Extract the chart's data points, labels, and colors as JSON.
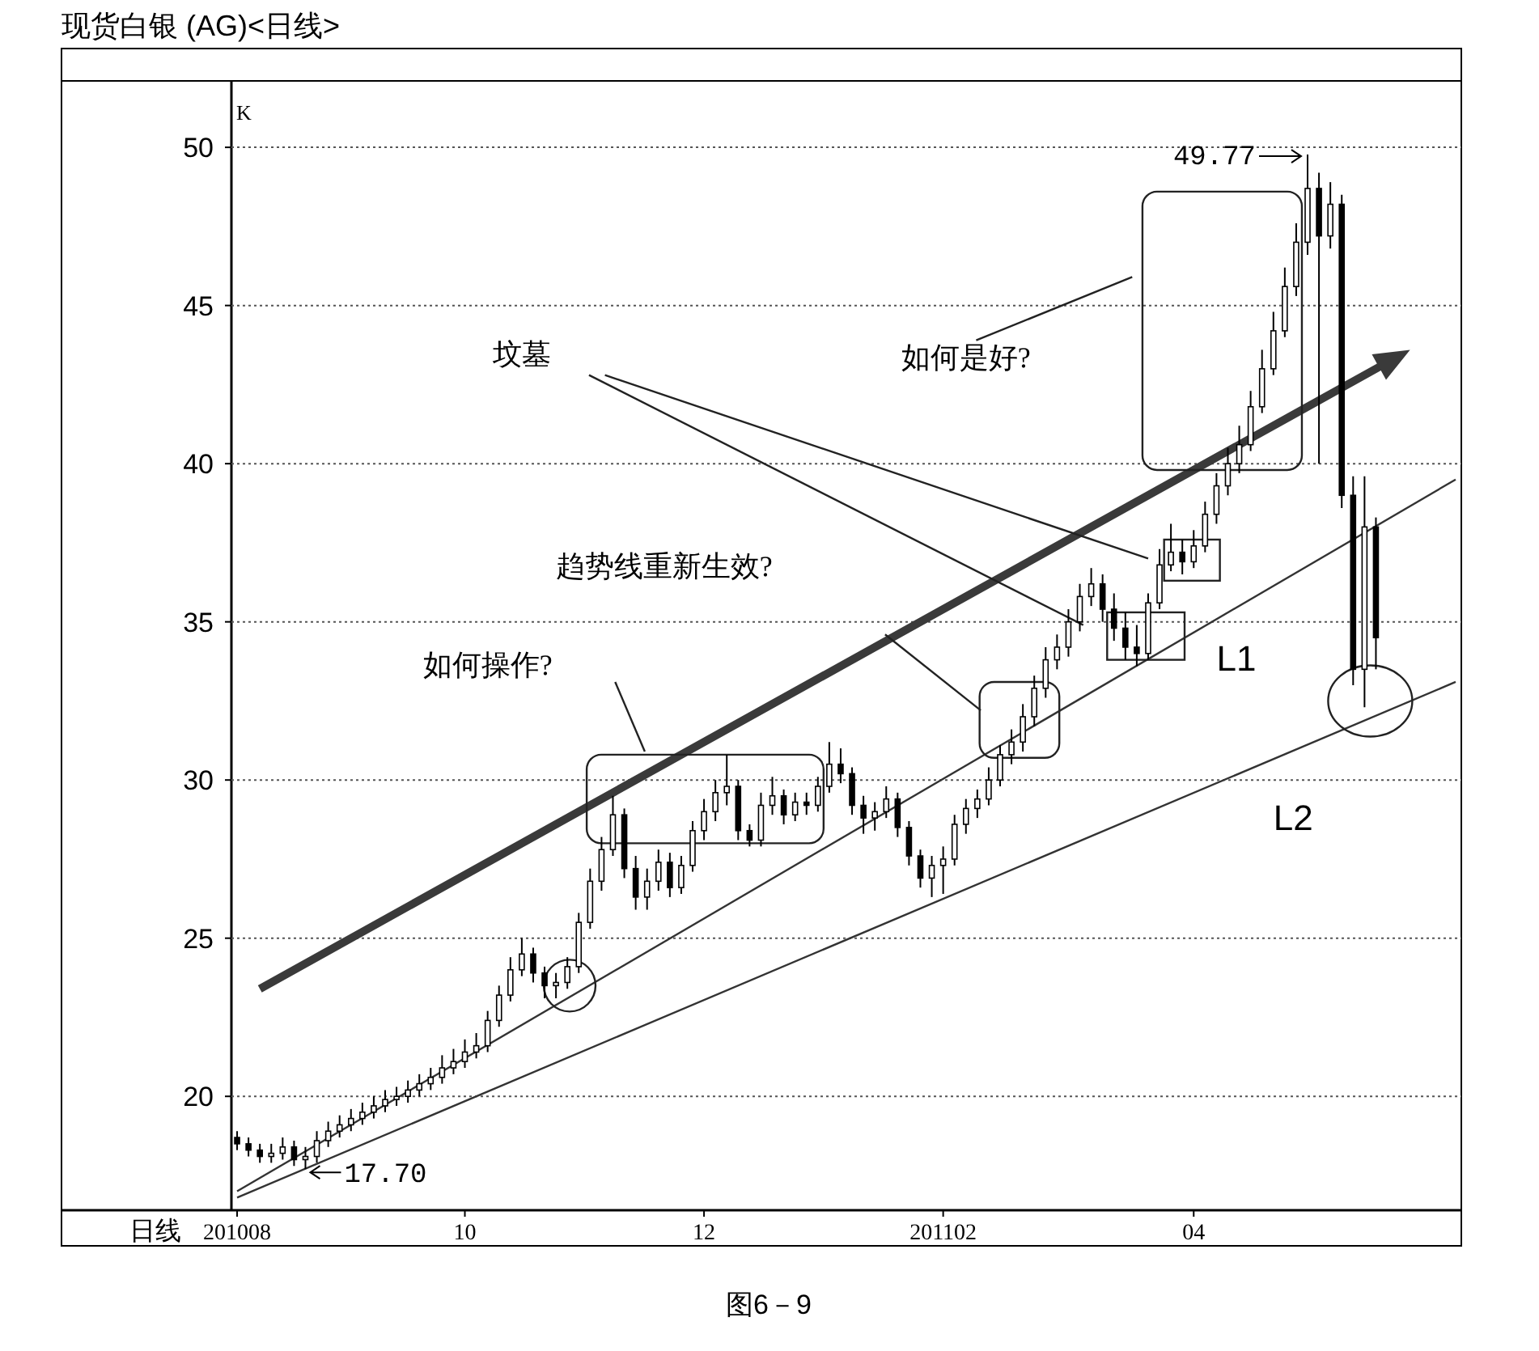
{
  "chart_data": {
    "type": "candlestick",
    "title": "现货白银 (AG)<日线>",
    "ylabel": "K",
    "xlabel": "日线",
    "categories": [
      "201008",
      null,
      null,
      null,
      null,
      null,
      null,
      null,
      null,
      null,
      null,
      null,
      null,
      null,
      null,
      null,
      null,
      null,
      null,
      null,
      "10",
      null,
      null,
      null,
      null,
      null,
      null,
      null,
      null,
      null,
      null,
      null,
      null,
      null,
      null,
      null,
      null,
      null,
      null,
      null,
      null,
      "12",
      null,
      null,
      null,
      null,
      null,
      null,
      null,
      null,
      null,
      null,
      null,
      null,
      null,
      null,
      null,
      null,
      null,
      null,
      null,
      null,
      "201102",
      null,
      null,
      null,
      null,
      null,
      null,
      null,
      null,
      null,
      null,
      null,
      null,
      null,
      null,
      null,
      null,
      null,
      null,
      null,
      null,
      null,
      "04",
      null,
      null,
      null,
      null,
      null,
      null,
      null,
      null,
      null,
      null,
      null,
      null,
      null,
      null,
      null,
      null,
      null,
      null,
      null,
      null,
      null,
      null,
      null
    ],
    "ohlc": [
      [
        18.7,
        18.9,
        18.3,
        18.5
      ],
      [
        18.5,
        18.7,
        18.1,
        18.3
      ],
      [
        18.3,
        18.5,
        17.9,
        18.1
      ],
      [
        18.1,
        18.5,
        17.9,
        18.2
      ],
      [
        18.2,
        18.7,
        18.0,
        18.4
      ],
      [
        18.4,
        18.6,
        17.8,
        18.0
      ],
      [
        18.0,
        18.4,
        17.7,
        18.1
      ],
      [
        18.1,
        18.9,
        17.9,
        18.6
      ],
      [
        18.6,
        19.2,
        18.4,
        18.9
      ],
      [
        18.9,
        19.4,
        18.7,
        19.1
      ],
      [
        19.1,
        19.6,
        18.9,
        19.3
      ],
      [
        19.3,
        19.8,
        19.1,
        19.5
      ],
      [
        19.5,
        20.0,
        19.3,
        19.7
      ],
      [
        19.7,
        20.2,
        19.5,
        19.9
      ],
      [
        19.9,
        20.3,
        19.7,
        20.0
      ],
      [
        20.0,
        20.5,
        19.8,
        20.2
      ],
      [
        20.2,
        20.7,
        20.0,
        20.4
      ],
      [
        20.4,
        20.9,
        20.2,
        20.6
      ],
      [
        20.6,
        21.3,
        20.4,
        20.9
      ],
      [
        20.9,
        21.5,
        20.7,
        21.1
      ],
      [
        21.1,
        21.8,
        20.9,
        21.4
      ],
      [
        21.4,
        22.0,
        21.2,
        21.6
      ],
      [
        21.6,
        22.7,
        21.4,
        22.4
      ],
      [
        22.4,
        23.5,
        22.2,
        23.2
      ],
      [
        23.2,
        24.4,
        23.0,
        24.0
      ],
      [
        24.0,
        25.0,
        23.8,
        24.5
      ],
      [
        24.5,
        24.7,
        23.6,
        23.9
      ],
      [
        23.9,
        24.1,
        23.1,
        23.5
      ],
      [
        23.5,
        23.9,
        23.1,
        23.6
      ],
      [
        23.6,
        24.4,
        23.4,
        24.1
      ],
      [
        24.1,
        25.8,
        23.9,
        25.5
      ],
      [
        25.5,
        27.2,
        25.3,
        26.8
      ],
      [
        26.8,
        28.2,
        26.5,
        27.8
      ],
      [
        27.8,
        29.5,
        27.6,
        28.9
      ],
      [
        28.9,
        29.1,
        26.9,
        27.2
      ],
      [
        27.2,
        27.6,
        25.9,
        26.3
      ],
      [
        26.3,
        27.2,
        25.9,
        26.8
      ],
      [
        26.8,
        27.8,
        26.5,
        27.4
      ],
      [
        27.4,
        27.7,
        26.3,
        26.6
      ],
      [
        26.6,
        27.6,
        26.4,
        27.3
      ],
      [
        27.3,
        28.7,
        27.1,
        28.4
      ],
      [
        28.4,
        29.4,
        28.1,
        29.0
      ],
      [
        29.0,
        30.0,
        28.7,
        29.6
      ],
      [
        29.6,
        30.8,
        29.2,
        29.8
      ],
      [
        29.8,
        30.0,
        28.1,
        28.4
      ],
      [
        28.4,
        28.6,
        27.9,
        28.1
      ],
      [
        28.1,
        29.6,
        27.9,
        29.2
      ],
      [
        29.2,
        30.1,
        28.9,
        29.5
      ],
      [
        29.5,
        29.7,
        28.6,
        28.9
      ],
      [
        28.9,
        29.6,
        28.7,
        29.3
      ],
      [
        29.3,
        29.6,
        28.9,
        29.2
      ],
      [
        29.2,
        30.1,
        29.0,
        29.8
      ],
      [
        29.8,
        31.2,
        29.6,
        30.5
      ],
      [
        30.5,
        31.0,
        29.9,
        30.2
      ],
      [
        30.2,
        30.4,
        28.9,
        29.2
      ],
      [
        29.2,
        29.5,
        28.3,
        28.8
      ],
      [
        28.8,
        29.3,
        28.4,
        29.0
      ],
      [
        29.0,
        29.8,
        28.8,
        29.4
      ],
      [
        29.4,
        29.6,
        28.2,
        28.5
      ],
      [
        28.5,
        28.7,
        27.3,
        27.6
      ],
      [
        27.6,
        27.8,
        26.6,
        26.9
      ],
      [
        26.9,
        27.6,
        26.3,
        27.3
      ],
      [
        27.3,
        27.9,
        26.4,
        27.5
      ],
      [
        27.5,
        28.9,
        27.3,
        28.6
      ],
      [
        28.6,
        29.4,
        28.3,
        29.1
      ],
      [
        29.1,
        29.7,
        28.8,
        29.4
      ],
      [
        29.4,
        30.4,
        29.2,
        30.0
      ],
      [
        30.0,
        31.1,
        29.8,
        30.8
      ],
      [
        30.8,
        31.6,
        30.5,
        31.2
      ],
      [
        31.2,
        32.4,
        30.9,
        32.0
      ],
      [
        32.0,
        33.3,
        31.7,
        32.9
      ],
      [
        32.9,
        34.2,
        32.6,
        33.8
      ],
      [
        33.8,
        34.6,
        33.5,
        34.2
      ],
      [
        34.2,
        35.4,
        33.9,
        35.0
      ],
      [
        35.0,
        36.2,
        34.7,
        35.8
      ],
      [
        35.8,
        36.7,
        35.5,
        36.2
      ],
      [
        36.2,
        36.5,
        35.0,
        35.4
      ],
      [
        35.4,
        35.9,
        34.4,
        34.8
      ],
      [
        34.8,
        35.3,
        33.8,
        34.2
      ],
      [
        34.2,
        34.9,
        33.6,
        34.0
      ],
      [
        34.0,
        35.9,
        33.8,
        35.6
      ],
      [
        35.6,
        37.3,
        35.4,
        36.8
      ],
      [
        36.8,
        38.1,
        36.6,
        37.2
      ],
      [
        37.2,
        37.6,
        36.5,
        36.9
      ],
      [
        36.9,
        37.9,
        36.7,
        37.4
      ],
      [
        37.4,
        38.8,
        37.2,
        38.4
      ],
      [
        38.4,
        39.7,
        38.1,
        39.3
      ],
      [
        39.3,
        40.5,
        39.0,
        40.0
      ],
      [
        40.0,
        41.2,
        39.7,
        40.6
      ],
      [
        40.6,
        42.3,
        40.4,
        41.8
      ],
      [
        41.8,
        43.6,
        41.6,
        43.0
      ],
      [
        43.0,
        44.8,
        42.8,
        44.2
      ],
      [
        44.2,
        46.2,
        44.0,
        45.6
      ],
      [
        45.6,
        47.6,
        45.3,
        47.0
      ],
      [
        47.0,
        49.77,
        46.6,
        48.7
      ],
      [
        48.7,
        49.2,
        40.0,
        47.2
      ],
      [
        47.2,
        48.9,
        46.8,
        48.2
      ],
      [
        48.2,
        48.5,
        38.6,
        39.0
      ],
      [
        39.0,
        39.6,
        33.0,
        33.5
      ],
      [
        33.5,
        39.6,
        32.3,
        38.0
      ],
      [
        38.0,
        38.3,
        33.5,
        34.5
      ],
      null,
      null,
      null,
      null,
      null,
      null,
      null
    ],
    "series": [
      {
        "type": "line",
        "name": "L1",
        "color": "#333333",
        "values": [
          17.0,
          null,
          null,
          null,
          null,
          null,
          null,
          null,
          null,
          null,
          null,
          null,
          null,
          null,
          null,
          null,
          null,
          null,
          null,
          null,
          null,
          null,
          null,
          null,
          null,
          null,
          null,
          null,
          null,
          null,
          null,
          null,
          null,
          null,
          null,
          null,
          null,
          null,
          null,
          null,
          null,
          null,
          null,
          null,
          null,
          null,
          null,
          null,
          null,
          null,
          null,
          null,
          null,
          null,
          null,
          null,
          null,
          null,
          null,
          null,
          null,
          null,
          null,
          null,
          null,
          null,
          null,
          null,
          null,
          null,
          null,
          null,
          null,
          null,
          null,
          null,
          null,
          null,
          null,
          null,
          null,
          null,
          null,
          null,
          null,
          null,
          null,
          null,
          null,
          null,
          null,
          null,
          null,
          null,
          null,
          null,
          null,
          null,
          null,
          null,
          null,
          null,
          null,
          null,
          null,
          null,
          null,
          39.5
        ]
      },
      {
        "type": "line",
        "name": "L2",
        "color": "#333333",
        "values": [
          16.8,
          null,
          null,
          null,
          null,
          null,
          null,
          null,
          null,
          null,
          null,
          null,
          null,
          null,
          null,
          null,
          null,
          null,
          null,
          null,
          null,
          null,
          null,
          null,
          null,
          null,
          null,
          null,
          null,
          null,
          null,
          null,
          null,
          null,
          null,
          null,
          null,
          null,
          null,
          null,
          null,
          null,
          null,
          null,
          null,
          null,
          null,
          null,
          null,
          null,
          null,
          null,
          null,
          null,
          null,
          null,
          null,
          null,
          null,
          null,
          null,
          null,
          null,
          null,
          null,
          null,
          null,
          null,
          null,
          null,
          null,
          null,
          null,
          null,
          null,
          null,
          null,
          null,
          null,
          null,
          null,
          null,
          null,
          null,
          null,
          null,
          null,
          null,
          null,
          null,
          null,
          null,
          null,
          null,
          null,
          null,
          null,
          null,
          null,
          null,
          null,
          null,
          null,
          null,
          null,
          null,
          null,
          33.1
        ]
      }
    ],
    "ylim": [
      16.4,
      52.1
    ],
    "yticks": [
      20,
      25,
      30,
      35,
      40,
      45,
      50
    ],
    "grid": "y",
    "annotations": [
      "49.77",
      "17.70",
      "坟墓",
      "如何是好?",
      "趋势线重新生效?",
      "如何操作?",
      "图6－9"
    ]
  }
}
